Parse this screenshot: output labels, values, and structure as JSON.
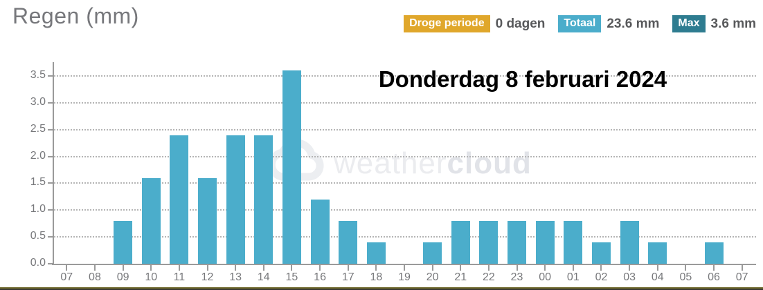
{
  "header": {
    "title": "Regen (mm)"
  },
  "stats": [
    {
      "label": "Droge periode",
      "value": "0 dagen",
      "badge_color": "#e0a72b"
    },
    {
      "label": "Totaal",
      "value": "23.6 mm",
      "badge_color": "#4badcb"
    },
    {
      "label": "Max",
      "value": "3.6 mm",
      "badge_color": "#2e7c90"
    }
  ],
  "watermark": {
    "prefix": "weather",
    "suffix": "cloud"
  },
  "chart_data": {
    "type": "bar",
    "title": "Donderdag 8 februari 2024",
    "xlabel": "",
    "ylabel": "Regen (mm)",
    "categories": [
      "07",
      "08",
      "09",
      "10",
      "11",
      "12",
      "13",
      "14",
      "15",
      "16",
      "17",
      "18",
      "19",
      "20",
      "21",
      "22",
      "23",
      "00",
      "01",
      "02",
      "03",
      "04",
      "05",
      "06",
      "07"
    ],
    "values": [
      0,
      0,
      0.8,
      1.6,
      2.4,
      1.6,
      2.4,
      2.4,
      3.6,
      1.2,
      0.8,
      0.4,
      0,
      0.4,
      0.8,
      0.8,
      0.8,
      0.8,
      0.8,
      0.4,
      0.8,
      0.4,
      0,
      0.4,
      0
    ],
    "ytick_labels": [
      "0.0",
      "0.5",
      "1.0",
      "1.5",
      "2.0",
      "2.5",
      "3.0",
      "3.5"
    ],
    "ylim": [
      0,
      3.78
    ],
    "grid": "horizontal-dotted",
    "legend": "none",
    "bar_color": "#4badcb",
    "axis_color": "#9a9a9a",
    "tick_label_color": "#77787b",
    "total_mm": "23.6",
    "max_mm": "3.6",
    "dry_period_days": "0"
  }
}
